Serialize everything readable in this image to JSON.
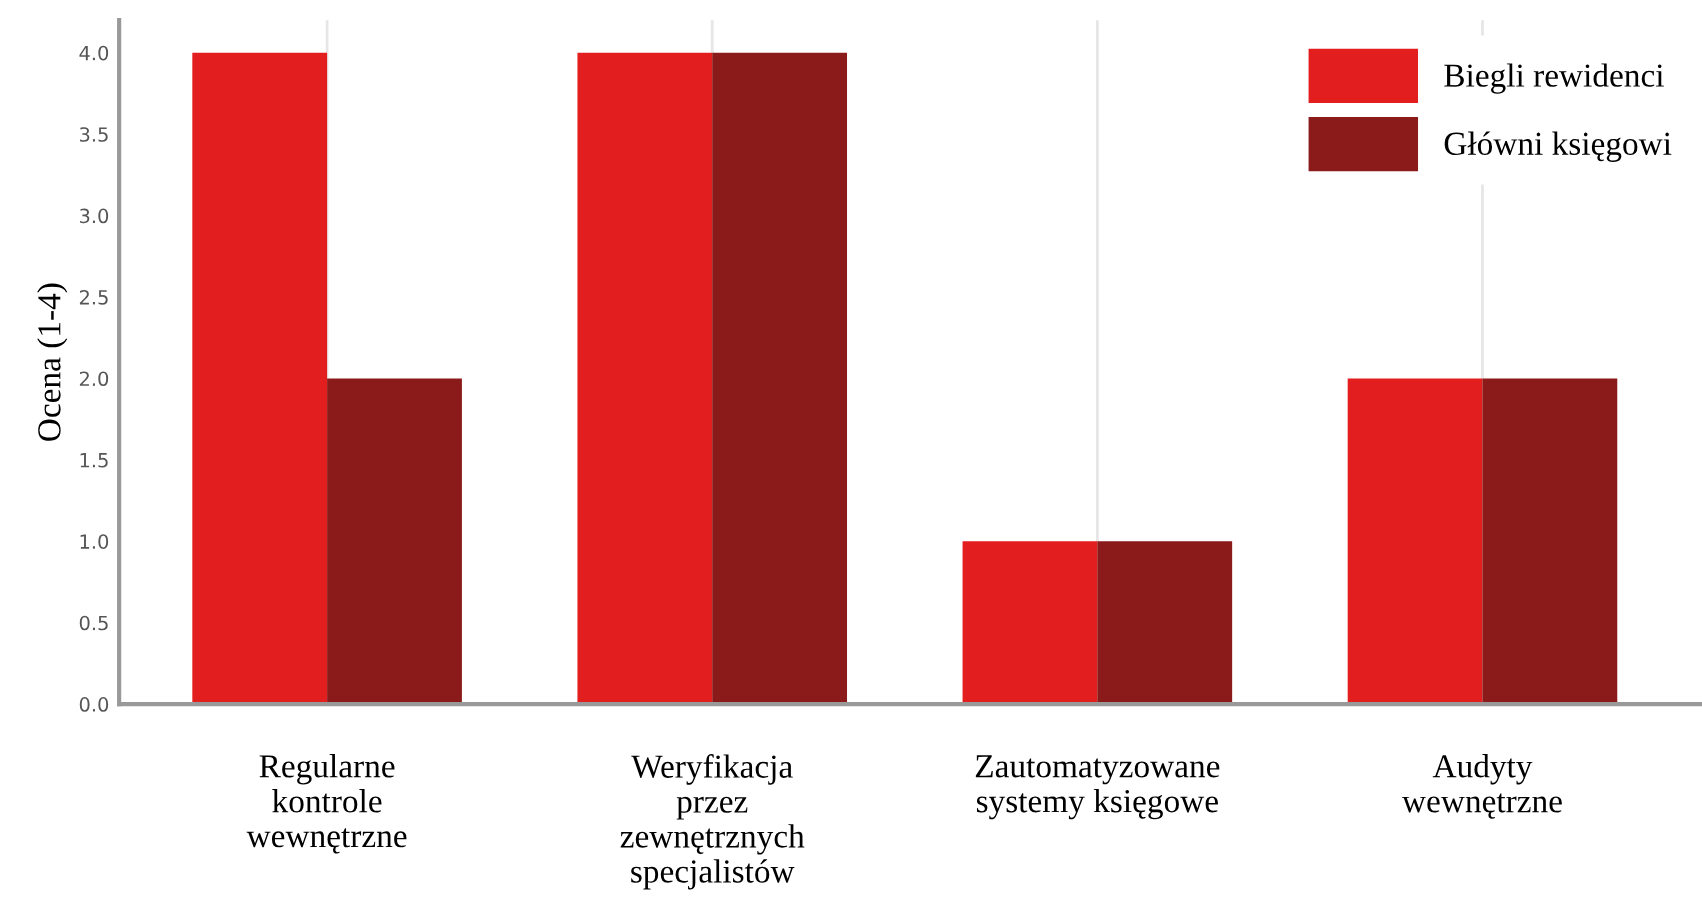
{
  "chart_data": {
    "type": "bar",
    "ylabel": "Ocena (1-4)",
    "categories": [
      "Regularne\nkontrole\nwewnętrzne",
      "Weryfikacja\nprzez\nzewnętrznych\nspecjalistów",
      "Zautomatyzowane\nsystemy księgowe",
      "Audyty\nwewnętrzne"
    ],
    "series": [
      {
        "name": "Biegli rewidenci",
        "color": "#e31e1e",
        "values": [
          4,
          4,
          1,
          2
        ]
      },
      {
        "name": "Główni księgowi",
        "color": "#8b1a1a",
        "values": [
          2,
          4,
          1,
          2
        ]
      }
    ],
    "ylim": [
      0,
      4.2
    ],
    "yticks": [
      {
        "value": 0,
        "label": "0.0"
      },
      {
        "value": 0.5,
        "label": "0.5"
      },
      {
        "value": 1,
        "label": "1.0"
      },
      {
        "value": 1.5,
        "label": "1.5"
      },
      {
        "value": 2,
        "label": "2.0"
      },
      {
        "value": 2.5,
        "label": "2.5"
      },
      {
        "value": 3,
        "label": "3.0"
      },
      {
        "value": 3.5,
        "label": "3.5"
      },
      {
        "value": 4,
        "label": "4.0"
      }
    ],
    "grid": "x",
    "legend": "top right"
  }
}
